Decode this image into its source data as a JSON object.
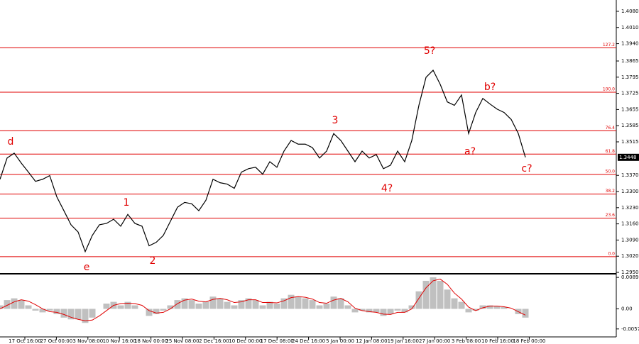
{
  "chart_data": [
    {
      "type": "line",
      "ylim": [
        1.2947,
        1.4129
      ],
      "yticks": [
        {
          "value": 1.408,
          "label": "1.4080"
        },
        {
          "value": 1.401,
          "label": "1.4010"
        },
        {
          "value": 1.394,
          "label": "1.3940"
        },
        1.3865,
        1.3795,
        1.3725,
        1.3655,
        1.3585,
        1.3515,
        {
          "value": 1.337,
          "label": "1.3370"
        },
        {
          "value": 1.33,
          "label": "1.3300"
        },
        {
          "value": 1.323,
          "label": "1.3230"
        },
        {
          "value": 1.316,
          "label": "1.3160"
        },
        {
          "value": 1.309,
          "label": "1.3090"
        },
        {
          "value": 1.302,
          "label": "1.3020"
        },
        {
          "value": 1.295,
          "label": "1.2950"
        }
      ],
      "x_labels": [
        "17 Oct 16:00",
        "27 Oct 00:00",
        "3 Nov 08:00",
        "10 Nov 16:00",
        "18 Nov 00:00",
        "25 Nov 08:00",
        "2 Dec 16:00",
        "10 Dec 00:00",
        "17 Dec 08:00",
        "24 Dec 16:00",
        "5 Jan 00:00",
        "12 Jan 08:00",
        "19 Jan 16:00",
        "27 Jan 00:00",
        "3 Feb 08:00",
        "10 Feb 16:00",
        "18 Feb 00:00"
      ],
      "series": [
        {
          "color": "#000000",
          "values": [
            1.3353,
            1.3445,
            1.3466,
            1.3423,
            1.3384,
            1.3344,
            1.3353,
            1.3369,
            1.3277,
            1.3217,
            1.3156,
            1.3125,
            1.304,
            1.311,
            1.3156,
            1.3162,
            1.318,
            1.315,
            1.3201,
            1.3162,
            1.315,
            1.3065,
            1.308,
            1.311,
            1.3171,
            1.3232,
            1.3253,
            1.3247,
            1.3217,
            1.3262,
            1.3353,
            1.3338,
            1.3332,
            1.3314,
            1.3384,
            1.3399,
            1.3405,
            1.3375,
            1.3429,
            1.3405,
            1.3475,
            1.3521,
            1.3505,
            1.3505,
            1.349,
            1.3445,
            1.3475,
            1.3551,
            1.3521,
            1.3475,
            1.3429,
            1.3475,
            1.3445,
            1.346,
            1.3399,
            1.3414,
            1.3475,
            1.3429,
            1.3521,
            1.3673,
            1.3794,
            1.3825,
            1.3764,
            1.3688,
            1.3673,
            1.3718,
            1.3551,
            1.3642,
            1.3703,
            1.3679,
            1.3657,
            1.3642,
            1.3612,
            1.3551,
            1.3448
          ]
        }
      ],
      "last_price": {
        "value": 1.3448,
        "label": "1.3448"
      },
      "fib_levels": [
        {
          "label": "127.2",
          "value": 1.3922
        },
        {
          "label": "100.0",
          "value": 1.373
        },
        {
          "label": "76.4",
          "value": 1.3563
        },
        {
          "label": "61.8",
          "value": 1.3462
        },
        {
          "label": "50.0",
          "value": 1.3374
        },
        {
          "label": "38.2",
          "value": 1.3289
        },
        {
          "label": "23.6",
          "value": 1.3185
        },
        {
          "label": "0.0",
          "value": 1.3018
        }
      ],
      "fib_color": "#e00000",
      "wave_labels": [
        "d",
        "e",
        "1",
        "2",
        "3",
        "4?",
        "5?",
        "a?",
        "b?",
        "c?"
      ]
    },
    {
      "type": "macd",
      "ylim": [
        -0.0078,
        0.0096
      ],
      "yticks": [
        0.00897,
        {
          "value": 0,
          "label": "0.00"
        },
        -0.00573
      ],
      "series": [
        {
          "color": "#c0c0c0",
          "values": [
            0.001,
            0.0025,
            0.003,
            0.0025,
            0.001,
            -0.0005,
            -0.001,
            -0.0005,
            -0.0015,
            -0.0025,
            -0.003,
            -0.003,
            -0.004,
            -0.0025,
            0,
            0.0015,
            0.002,
            0.001,
            0.002,
            0.001,
            0,
            -0.002,
            -0.0015,
            -0.0005,
            0.001,
            0.0025,
            0.003,
            0.0025,
            0.0015,
            0.002,
            0.0035,
            0.003,
            0.002,
            0.001,
            0.0025,
            0.003,
            0.0025,
            0.001,
            0.002,
            0.0015,
            0.003,
            0.004,
            0.0035,
            0.003,
            0.0025,
            0.001,
            0.0015,
            0.0035,
            0.003,
            0.001,
            -0.001,
            -0.0005,
            -0.001,
            -0.001,
            -0.002,
            -0.0015,
            -0.0005,
            -0.001,
            0.001,
            0.005,
            0.008,
            0.009,
            0.008,
            0.0055,
            0.003,
            0.002,
            -0.001,
            -0.0005,
            0.001,
            0.001,
            0.0008,
            0.0005,
            0,
            -0.0015,
            -0.0025
          ]
        },
        {
          "color": "#e00000",
          "values": [
            0,
            0.001,
            0.002,
            0.0026,
            0.0022,
            0.0012,
            0,
            -0.0008,
            -0.001,
            -0.0016,
            -0.0024,
            -0.003,
            -0.0034,
            -0.0032,
            -0.002,
            -0.0005,
            0.001,
            0.0015,
            0.0016,
            0.0015,
            0.001,
            -0.0005,
            -0.0012,
            -0.001,
            0,
            0.0015,
            0.0025,
            0.0028,
            0.0022,
            0.002,
            0.0027,
            0.003,
            0.0026,
            0.0018,
            0.002,
            0.0026,
            0.0026,
            0.0018,
            0.0018,
            0.0017,
            0.0023,
            0.0032,
            0.0035,
            0.0033,
            0.0028,
            0.0018,
            0.0016,
            0.0025,
            0.003,
            0.002,
            0.0002,
            -0.0005,
            -0.0008,
            -0.001,
            -0.0015,
            -0.0016,
            -0.001,
            -0.001,
            0,
            0.003,
            0.006,
            0.008,
            0.0085,
            0.007,
            0.0045,
            0.0028,
            0.0005,
            -0.0005,
            0.0003,
            0.0008,
            0.0008,
            0.0006,
            0.0002,
            -0.0008,
            -0.0018
          ]
        }
      ]
    }
  ]
}
